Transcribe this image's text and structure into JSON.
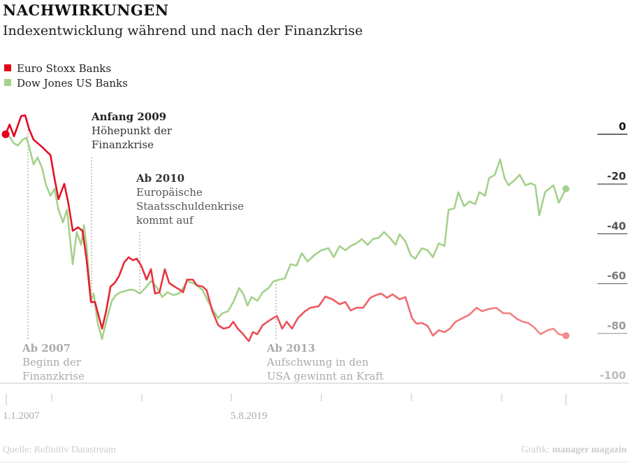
{
  "chart_data": {
    "type": "line",
    "title": "NACHWIRKUNGEN",
    "subtitle": "Indexentwicklung während und nach der Finanzkrise",
    "ylim": [
      -100,
      0
    ],
    "yticks": [
      "0",
      "-20",
      "-40",
      "-60",
      "-80",
      "-100"
    ],
    "ytick_values": [
      0,
      -20,
      -40,
      -60,
      -80,
      -100
    ],
    "xlim": [
      2007.0,
      2019.6
    ],
    "xtick_labels": [
      "1.1.2007",
      "5.8.2019"
    ],
    "legend_placement": "top-left",
    "colors": {
      "euro": "#e3001b",
      "euro_end": "#f28b8b",
      "dow": "#a4d18b"
    },
    "series": [
      {
        "name": "Euro Stoxx Banks",
        "x": [
          2007.0,
          2007.09,
          2007.19,
          2007.35,
          2007.44,
          2007.53,
          2007.63,
          2007.82,
          2008.01,
          2008.1,
          2008.19,
          2008.32,
          2008.41,
          2008.51,
          2008.63,
          2008.73,
          2008.82,
          2008.92,
          2009.01,
          2009.17,
          2009.26,
          2009.36,
          2009.45,
          2009.55,
          2009.67,
          2009.77,
          2009.86,
          2009.95,
          2010.05,
          2010.17,
          2010.27,
          2010.36,
          2010.46,
          2010.58,
          2010.68,
          2010.8,
          2010.93,
          2010.99,
          2011.08,
          2011.21,
          2011.3,
          2011.43,
          2011.52,
          2011.65,
          2011.78,
          2011.9,
          2012.03,
          2012.12,
          2012.22,
          2012.34,
          2012.47,
          2012.56,
          2012.66,
          2012.78,
          2012.94,
          2013.1,
          2013.22,
          2013.32,
          2013.44,
          2013.57,
          2013.72,
          2013.85,
          2014.04,
          2014.19,
          2014.35,
          2014.51,
          2014.64,
          2014.76,
          2014.89,
          2015.04,
          2015.2,
          2015.33,
          2015.45,
          2015.58,
          2015.7,
          2015.86,
          2015.99,
          2016.14,
          2016.24,
          2016.36,
          2016.49,
          2016.61,
          2016.74,
          2016.87,
          2016.99,
          2017.12,
          2017.27,
          2017.43,
          2017.59,
          2017.71,
          2017.87,
          2018.03,
          2018.19,
          2018.34,
          2018.5,
          2018.63,
          2018.75,
          2018.88,
          2019.03,
          2019.19,
          2019.32,
          2019.44,
          2019.6
        ],
        "values": [
          0,
          3.9,
          -0.8,
          7.3,
          7.6,
          2.0,
          -2.2,
          -5.1,
          -8.4,
          -17.7,
          -26.1,
          -19.9,
          -27.5,
          -38.8,
          -37.4,
          -38.8,
          -50.0,
          -67.4,
          -67.4,
          -78.1,
          -71.1,
          -61.2,
          -59.8,
          -57.0,
          -51.4,
          -49.4,
          -50.6,
          -50.0,
          -52.8,
          -58.4,
          -54.2,
          -64.0,
          -63.5,
          -54.2,
          -59.8,
          -61.2,
          -62.6,
          -63.5,
          -58.4,
          -58.4,
          -60.7,
          -61.2,
          -62.6,
          -71.1,
          -76.7,
          -78.1,
          -77.5,
          -75.3,
          -78.1,
          -80.3,
          -83.1,
          -79.5,
          -80.3,
          -76.7,
          -74.7,
          -73.0,
          -78.1,
          -75.3,
          -78.1,
          -73.9,
          -71.3,
          -69.7,
          -69.1,
          -65.2,
          -66.3,
          -68.3,
          -67.4,
          -70.8,
          -69.7,
          -69.7,
          -65.7,
          -64.6,
          -64.0,
          -65.7,
          -64.3,
          -66.3,
          -65.4,
          -73.9,
          -76.1,
          -75.8,
          -77.0,
          -80.9,
          -78.7,
          -79.5,
          -78.1,
          -75.3,
          -73.9,
          -72.5,
          -69.7,
          -71.1,
          -70.2,
          -69.7,
          -71.9,
          -71.9,
          -74.2,
          -75.3,
          -75.8,
          -77.5,
          -80.3,
          -78.7,
          -78.1,
          -80.3,
          -80.9
        ]
      },
      {
        "name": "Dow Jones US Banks",
        "x": [
          2007.0,
          2007.09,
          2007.19,
          2007.28,
          2007.38,
          2007.47,
          2007.53,
          2007.63,
          2007.72,
          2007.82,
          2007.91,
          2008.01,
          2008.1,
          2008.19,
          2008.29,
          2008.38,
          2008.51,
          2008.6,
          2008.7,
          2008.76,
          2008.82,
          2008.92,
          2008.98,
          2009.07,
          2009.17,
          2009.26,
          2009.39,
          2009.48,
          2009.58,
          2009.7,
          2009.8,
          2009.89,
          2010.02,
          2010.14,
          2010.27,
          2010.39,
          2010.52,
          2010.64,
          2010.77,
          2010.9,
          2010.99,
          2011.08,
          2011.21,
          2011.3,
          2011.43,
          2011.56,
          2011.68,
          2011.78,
          2011.87,
          2012.0,
          2012.12,
          2012.25,
          2012.34,
          2012.44,
          2012.53,
          2012.66,
          2012.78,
          2012.91,
          2013.03,
          2013.16,
          2013.28,
          2013.41,
          2013.54,
          2013.66,
          2013.79,
          2013.94,
          2014.1,
          2014.26,
          2014.38,
          2014.51,
          2014.64,
          2014.76,
          2014.89,
          2015.01,
          2015.14,
          2015.26,
          2015.39,
          2015.51,
          2015.64,
          2015.77,
          2015.86,
          2015.99,
          2016.11,
          2016.21,
          2016.36,
          2016.49,
          2016.61,
          2016.74,
          2016.87,
          2016.96,
          2017.09,
          2017.18,
          2017.31,
          2017.43,
          2017.56,
          2017.65,
          2017.78,
          2017.87,
          2018.0,
          2018.12,
          2018.22,
          2018.31,
          2018.44,
          2018.56,
          2018.69,
          2018.81,
          2018.91,
          2019.0,
          2019.13,
          2019.22,
          2019.32,
          2019.44,
          2019.6
        ],
        "values": [
          0,
          -1.1,
          -3.7,
          -4.5,
          -2.2,
          -1.4,
          -5.1,
          -12.1,
          -9.3,
          -13.5,
          -20.5,
          -24.7,
          -21.9,
          -30.3,
          -35.4,
          -30.3,
          -52.2,
          -39.3,
          -44.4,
          -36.5,
          -44.4,
          -66.9,
          -64.0,
          -75.8,
          -82.3,
          -75.3,
          -66.9,
          -64.6,
          -63.5,
          -62.9,
          -62.4,
          -62.6,
          -64.0,
          -61.8,
          -59.0,
          -61.2,
          -65.4,
          -63.5,
          -64.6,
          -64.0,
          -61.8,
          -59.0,
          -59.8,
          -60.7,
          -62.6,
          -67.4,
          -71.1,
          -73.9,
          -71.9,
          -71.1,
          -67.4,
          -61.8,
          -64.0,
          -68.8,
          -65.4,
          -66.9,
          -63.5,
          -61.8,
          -59.0,
          -58.4,
          -57.9,
          -52.2,
          -52.8,
          -47.8,
          -51.1,
          -48.6,
          -46.6,
          -45.8,
          -49.4,
          -44.9,
          -46.6,
          -44.9,
          -43.8,
          -42.1,
          -44.4,
          -42.1,
          -41.6,
          -39.3,
          -41.6,
          -44.4,
          -40.2,
          -43.0,
          -48.6,
          -50.0,
          -45.8,
          -46.6,
          -49.4,
          -43.8,
          -44.9,
          -30.3,
          -29.8,
          -23.3,
          -28.9,
          -27.0,
          -28.1,
          -23.3,
          -24.7,
          -17.7,
          -16.3,
          -10.1,
          -17.7,
          -20.5,
          -18.5,
          -16.3,
          -20.5,
          -19.7,
          -20.5,
          -32.6,
          -23.3,
          -21.9,
          -20.5,
          -27.5,
          -21.9
        ]
      }
    ],
    "annotations": [
      {
        "head": "Ab 2007",
        "lines": [
          "Beginn der",
          "Finanzkrise"
        ],
        "x": 2007.5
      },
      {
        "head": "Anfang 2009",
        "lines": [
          "Höhepunkt der",
          "Finanzkrise"
        ],
        "x": 2008.93
      },
      {
        "head": "Ab 2010",
        "lines": [
          "Europäische",
          "Staatsschuldenkrise",
          "kommt auf"
        ],
        "x": 2010.02
      },
      {
        "head": "Ab 2013",
        "lines": [
          "Aufschwung in den",
          "USA gewinnt an Kraft"
        ],
        "x": 2013.08
      }
    ]
  },
  "footer": {
    "source": "Quelle: Refinitiv Datastream",
    "credit_prefix": "Grafik:",
    "credit_brand": "manager magazin"
  }
}
